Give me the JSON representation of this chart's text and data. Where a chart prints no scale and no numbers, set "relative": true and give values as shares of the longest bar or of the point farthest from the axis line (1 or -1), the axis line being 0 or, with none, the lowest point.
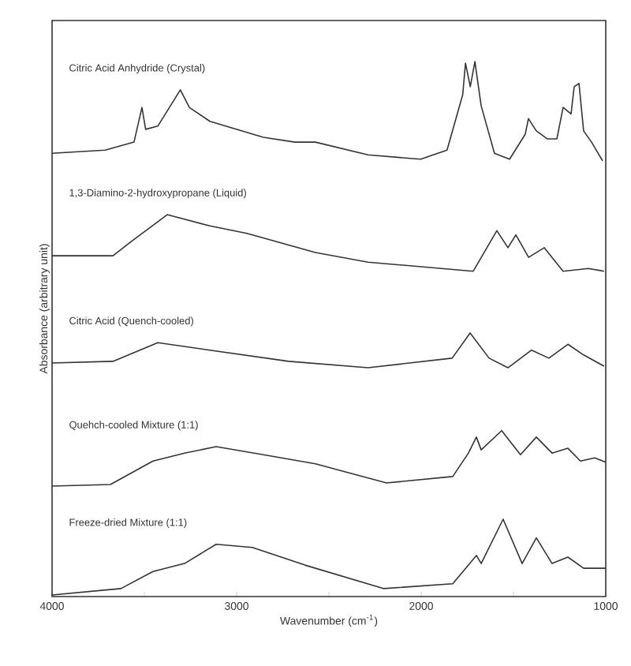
{
  "chart_data": {
    "type": "line",
    "relative": true,
    "xlabel": "Wavenumber (cm$^{-1}$)",
    "ylabel": "Absorbance (arbitrary unit)",
    "xlim": [
      4000,
      1000
    ],
    "xticks": [
      4000,
      {
        "value": 3500,
        "label": null
      },
      3000,
      {
        "value": 2500,
        "label": null
      },
      2000,
      {
        "value": 1500,
        "label": null
      },
      1000
    ],
    "grid": false,
    "legend": false,
    "marker": "none",
    "line_style": "solid",
    "series": [
      {
        "name": "Citric Acid Anhydride (Crystal)",
        "color": "#333333",
        "x": [
          4000,
          3712,
          3556,
          3513,
          3493,
          3427,
          3305,
          3256,
          3145,
          2855,
          2684,
          2573,
          2288,
          2003,
          1860,
          1775,
          1760,
          1734,
          1709,
          1675,
          1603,
          1521,
          1436,
          1419,
          1376,
          1316,
          1265,
          1231,
          1188,
          1171,
          1145,
          1120,
          1077,
          1017
        ],
        "values": [
          0.828,
          0.834,
          0.849,
          0.914,
          0.873,
          0.879,
          0.947,
          0.914,
          0.888,
          0.858,
          0.849,
          0.849,
          0.825,
          0.817,
          0.834,
          0.938,
          0.997,
          0.953,
          1,
          0.917,
          0.828,
          0.817,
          0.864,
          0.893,
          0.87,
          0.855,
          0.855,
          0.914,
          0.902,
          0.953,
          0.959,
          0.87,
          0.849,
          0.814
        ]
      },
      {
        "name": "1,3-Diamino-2-hydroxypropane (Liquid)",
        "color": "#333333",
        "x": [
          4000,
          3670,
          3570,
          3376,
          3145,
          2944,
          2573,
          2288,
          1718,
          1590,
          1530,
          1487,
          1418,
          1333,
          1231,
          1094,
          1009
        ],
        "values": [
          0.636,
          0.636,
          0.663,
          0.713,
          0.692,
          0.678,
          0.642,
          0.624,
          0.607,
          0.683,
          0.651,
          0.675,
          0.633,
          0.651,
          0.607,
          0.612,
          0.607
        ]
      },
      {
        "name": "Citric Acid (Quench-cooled)",
        "color": "#333333",
        "x": [
          4000,
          3670,
          3427,
          3145,
          2718,
          2288,
          1832,
          1735,
          1632,
          1530,
          1402,
          1308,
          1205,
          1120,
          1009
        ],
        "values": [
          0.435,
          0.438,
          0.473,
          0.459,
          0.438,
          0.426,
          0.444,
          0.491,
          0.444,
          0.426,
          0.459,
          0.444,
          0.47,
          0.45,
          0.429
        ]
      },
      {
        "name": "Quehch-cooled Mixture (1:1)",
        "color": "#333333",
        "x": [
          4000,
          3684,
          3453,
          3282,
          3111,
          2855,
          2573,
          2188,
          1829,
          1744,
          1701,
          1675,
          1564,
          1462,
          1376,
          1291,
          1205,
          1137,
          1060,
          1000
        ],
        "values": [
          0.204,
          0.207,
          0.251,
          0.266,
          0.278,
          0.263,
          0.246,
          0.21,
          0.222,
          0.266,
          0.296,
          0.272,
          0.308,
          0.263,
          0.296,
          0.266,
          0.275,
          0.251,
          0.257,
          0.249
        ]
      },
      {
        "name": "Freeze-dried Mixture (1:1)",
        "color": "#333333",
        "x": [
          4000,
          3627,
          3453,
          3282,
          3111,
          2915,
          2630,
          2205,
          1829,
          1701,
          1675,
          1556,
          1453,
          1376,
          1291,
          1205,
          1120,
          1000
        ],
        "values": [
          0,
          0.012,
          0.044,
          0.059,
          0.095,
          0.089,
          0.056,
          0.012,
          0.021,
          0.074,
          0.059,
          0.142,
          0.059,
          0.107,
          0.059,
          0.071,
          0.05,
          0.05
        ]
      }
    ]
  }
}
